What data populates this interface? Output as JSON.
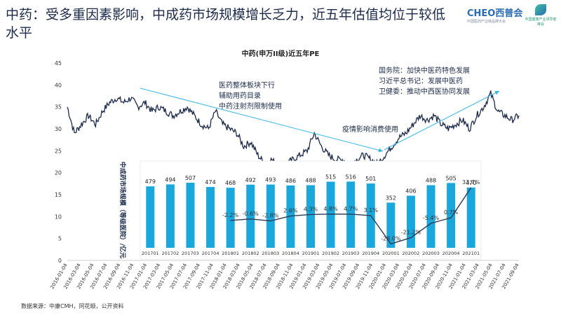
{
  "slide": {
    "title": "中药：受多重因素影响，中成药市场规模增长乏力，近五年估值均位于较低水平",
    "source": "数据来源：中康CMH，同花顺，公开资料"
  },
  "logo": {
    "brand": "CHEO西普会",
    "sub": "中国医药产业链品牌大会",
    "partner": "中国健康产业领导者峰会"
  },
  "colors": {
    "pe_line": "#1b2a4a",
    "bars": "#1aa7dc",
    "growth_line": "#2b3a55",
    "trend_arrow": "#38b6e8",
    "text": "#1b2a4a"
  },
  "annotations": {
    "policy_left": [
      "医药整体板块下行",
      "辅助用药目录",
      "中药注射剂限制使用"
    ],
    "epidemic": "疫情影响消费使用",
    "policy_right": [
      "国务院：加快中医药特色发展",
      "习近平总书记：发展中医药",
      "卫健委：推动中西医协同发展"
    ]
  },
  "chart_data": [
    {
      "type": "line",
      "title": "中药(申万II级)近五年PE",
      "ylim": [
        0,
        45
      ],
      "y_ticks": [
        0,
        5,
        10,
        15,
        20,
        25,
        30,
        35,
        40,
        45
      ],
      "x_tick_labels": [
        "2016-01-04",
        "2016-03-04",
        "2016-05-04",
        "2016-07-04",
        "2016-09-04",
        "2016-11-04",
        "2017-01-04",
        "2017-03-04",
        "2017-05-04",
        "2017-07-04",
        "2017-09-04",
        "2017-11-04",
        "2018-01-04",
        "2018-03-04",
        "2018-05-04",
        "2018-07-04",
        "2018-09-04",
        "2018-11-04",
        "2019-01-04",
        "2019-03-04",
        "2019-05-04",
        "2019-07-04",
        "2019-09-04",
        "2019-11-04",
        "2020-01-04",
        "2020-03-04",
        "2020-05-04",
        "2020-07-04",
        "2020-09-04",
        "2020-11-04",
        "2021-01-04",
        "2021-03-04",
        "2021-05-04",
        "2021-07-04",
        "2021-09-04"
      ],
      "series": [
        {
          "values": [
            35,
            29,
            31,
            33,
            31,
            34,
            36,
            37,
            36,
            37,
            35,
            36,
            34,
            35,
            34,
            33,
            34,
            35,
            33,
            31,
            30,
            34,
            31,
            30,
            29,
            26,
            27,
            24,
            22,
            23,
            21,
            22,
            23,
            24,
            25,
            29,
            26,
            24,
            23,
            23,
            22,
            23,
            24,
            23,
            22,
            24,
            26,
            28,
            29,
            31,
            33,
            32,
            33,
            31,
            30,
            31,
            32,
            30,
            33,
            35,
            38,
            34,
            33,
            32,
            33
          ]
        }
      ]
    },
    {
      "type": "bar",
      "ylabel": "中成药市场规模（等级医院）/亿元",
      "categories": [
        "201701",
        "201702",
        "201703",
        "201704",
        "201801",
        "201802",
        "201803",
        "201804",
        "201901",
        "201902",
        "201903",
        "201904",
        "202001",
        "202002",
        "202003",
        "202004",
        "202101"
      ],
      "series": [
        {
          "name": "市场规模",
          "values": [
            479,
            494,
            507,
            474,
            468,
            492,
            493,
            486,
            488,
            515,
            516,
            501,
            352,
            406,
            488,
            505,
            470
          ]
        }
      ],
      "growth_labels": [
        "-2.2%",
        "-0.6%",
        "-2.8%",
        "2.6%",
        "4.3%",
        "4.8%",
        "4.7%",
        "3.1%",
        "-28.0%",
        "-21.2%",
        "-5.4%",
        "0.7%",
        "33.7%"
      ],
      "growth_values": [
        -2.2,
        -0.6,
        -2.8,
        2.6,
        4.3,
        4.8,
        4.7,
        3.1,
        -28.0,
        -21.2,
        -5.4,
        0.7,
        33.7
      ]
    }
  ]
}
